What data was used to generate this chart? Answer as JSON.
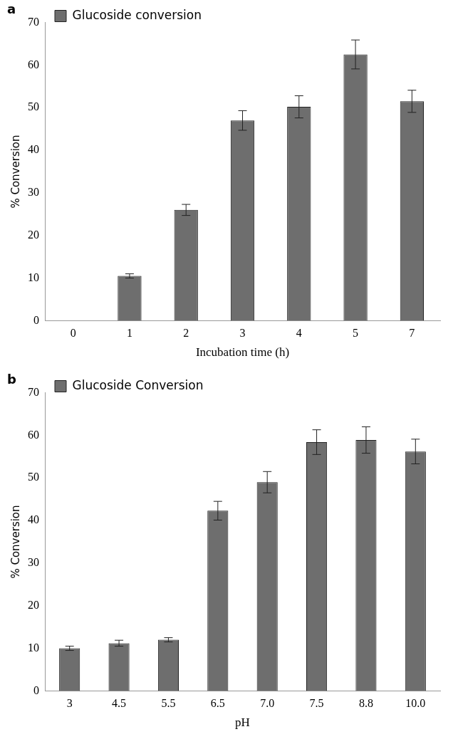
{
  "chart_data": [
    {
      "type": "bar",
      "title": "a",
      "xlabel": "Incubation time (h)",
      "ylabel": "% Conversion",
      "categories": [
        "0",
        "1",
        "2",
        "3",
        "4",
        "5",
        "7"
      ],
      "series": [
        {
          "name": "Glucoside conversion",
          "color": "#6e6e6e",
          "values": [
            0,
            10.5,
            26,
            47,
            50.2,
            62.5,
            51.5
          ],
          "errors": [
            null,
            0.5,
            1.3,
            2.3,
            2.6,
            3.4,
            2.6
          ]
        }
      ],
      "ylim": [
        0,
        70
      ],
      "yticks": [
        0,
        10,
        20,
        30,
        40,
        50,
        60,
        70
      ],
      "grid": false,
      "legend": "top left"
    },
    {
      "type": "bar",
      "title": "b",
      "xlabel": "pH",
      "ylabel": "% Conversion",
      "categories": [
        "3",
        "4.5",
        "5.5",
        "6.5",
        "7.0",
        "7.5",
        "8.8",
        "10.0"
      ],
      "series": [
        {
          "name": "Glucoside Conversion",
          "color": "#6e6e6e",
          "values": [
            10,
            11.2,
            12,
            42.3,
            49,
            58.4,
            58.9,
            56.2
          ],
          "errors": [
            0.5,
            0.7,
            0.5,
            2.2,
            2.5,
            2.9,
            3.1,
            2.9
          ]
        }
      ],
      "ylim": [
        0,
        70
      ],
      "yticks": [
        0,
        10,
        20,
        30,
        40,
        50,
        60,
        70
      ],
      "grid": false,
      "legend": "top left"
    }
  ]
}
